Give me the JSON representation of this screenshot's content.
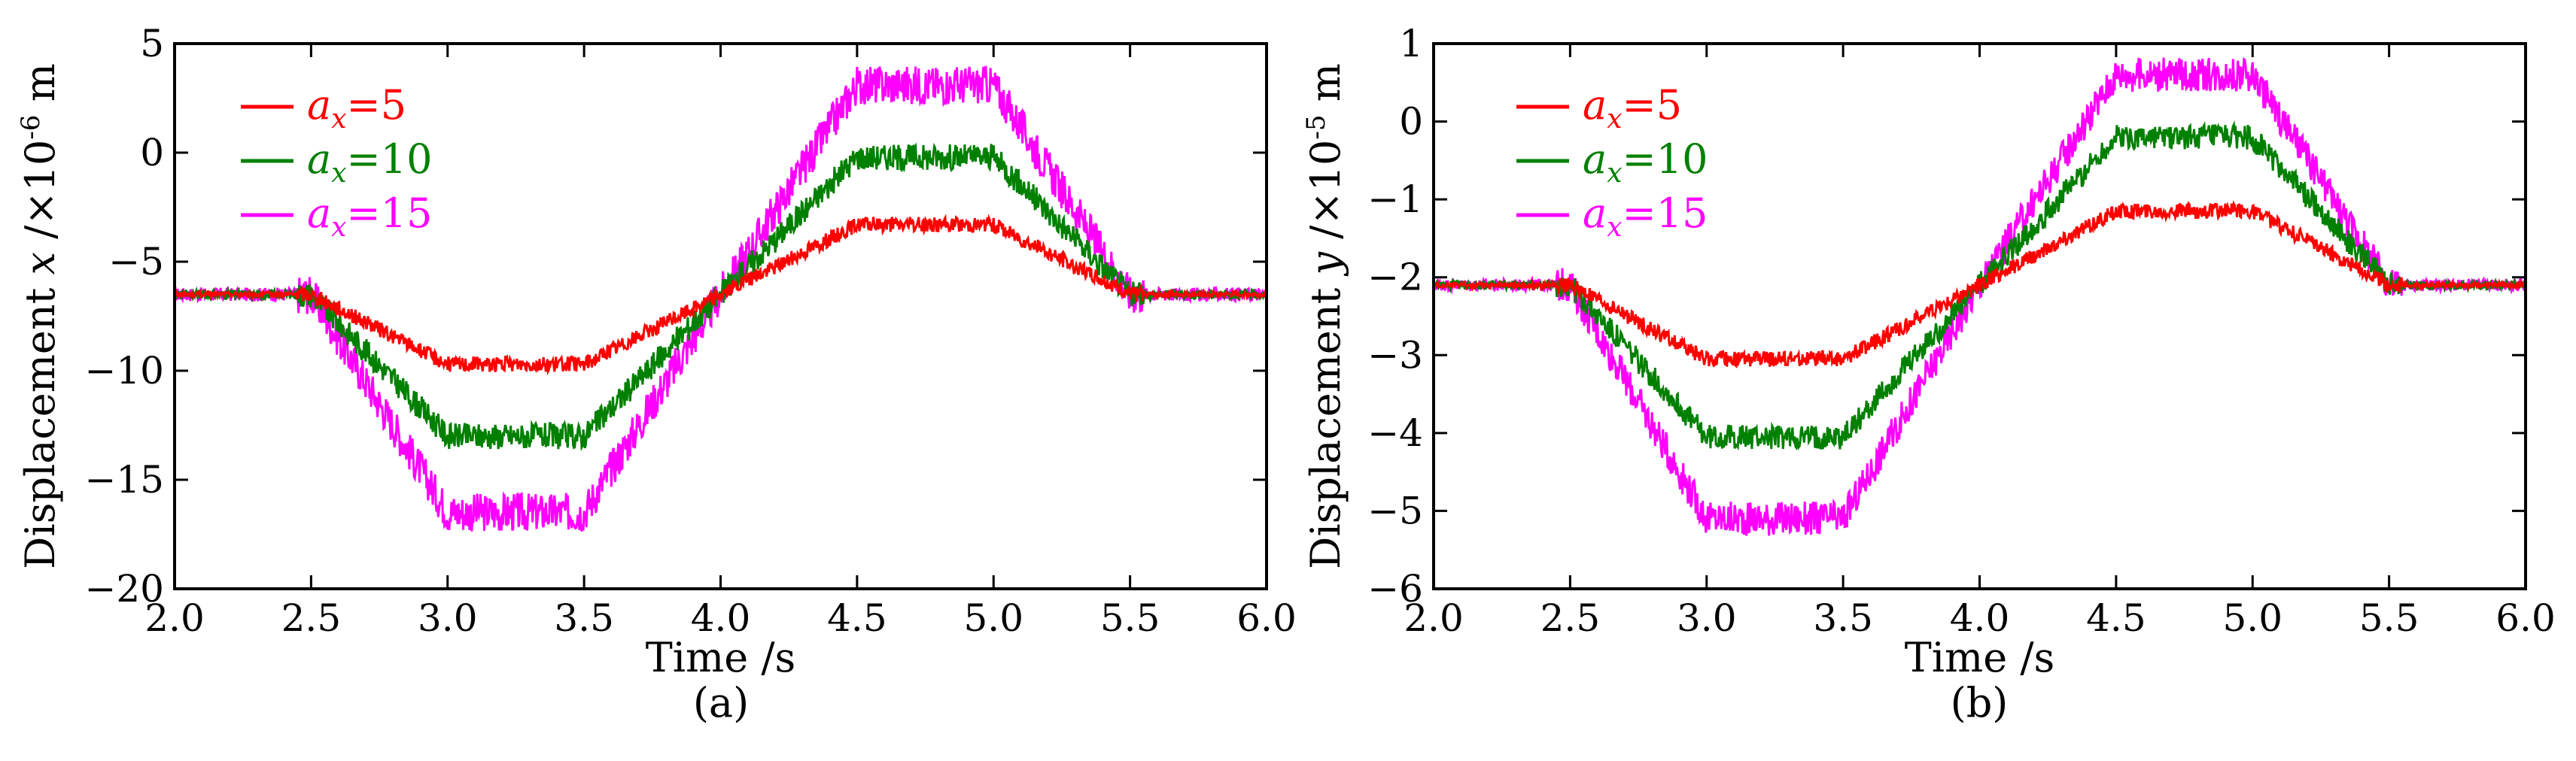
{
  "chart_data": [
    {
      "type": "line",
      "panel_label": "(a)",
      "xlabel": "Time /s",
      "ylabel_prefix": "Displacement ",
      "ylabel_var": "x",
      "ylabel_unit_pre": " /×10",
      "ylabel_exp": "-6",
      "ylabel_unit_post": " m",
      "xlim": [
        2.0,
        6.0
      ],
      "ylim": [
        -20,
        5
      ],
      "xticks": [
        2.0,
        2.5,
        3.0,
        3.5,
        4.0,
        4.5,
        5.0,
        5.5,
        6.0
      ],
      "xtick_labels": [
        "2.0",
        "2.5",
        "3.0",
        "3.5",
        "4.0",
        "4.5",
        "5.0",
        "5.5",
        "6.0"
      ],
      "yticks": [
        5,
        0,
        -5,
        -10,
        -15,
        -20
      ],
      "ytick_labels": [
        "5",
        "0",
        "−5",
        "−10",
        "−15",
        "−20"
      ],
      "legend_position": "top-left",
      "series": [
        {
          "name": "a_x=5",
          "legend_var": "a",
          "legend_sub": "x",
          "legend_val": "=5",
          "color": "#ff0000",
          "x": [
            2.0,
            2.5,
            3.0,
            3.5,
            4.0,
            4.5,
            5.0,
            5.5,
            6.0
          ],
          "y": [
            -6.5,
            -6.5,
            -9.7,
            -9.7,
            -6.5,
            -3.3,
            -3.3,
            -6.5,
            -6.5
          ],
          "noise": 0.35
        },
        {
          "name": "a_x=10",
          "legend_var": "a",
          "legend_sub": "x",
          "legend_val": "=10",
          "color": "#008000",
          "x": [
            2.0,
            2.5,
            3.0,
            3.5,
            4.0,
            4.5,
            5.0,
            5.5,
            6.0
          ],
          "y": [
            -6.5,
            -6.5,
            -13.0,
            -13.0,
            -6.5,
            -0.2,
            -0.2,
            -6.5,
            -6.5
          ],
          "noise": 0.6
        },
        {
          "name": "a_x=15",
          "legend_var": "a",
          "legend_sub": "x",
          "legend_val": "=15",
          "color": "#ff00ff",
          "x": [
            2.0,
            2.5,
            3.0,
            3.5,
            4.0,
            4.5,
            5.0,
            5.5,
            6.0
          ],
          "y": [
            -6.5,
            -6.5,
            -16.5,
            -16.5,
            -6.5,
            3.1,
            3.1,
            -6.5,
            -6.5
          ],
          "noise": 0.9
        }
      ]
    },
    {
      "type": "line",
      "panel_label": "(b)",
      "xlabel": "Time /s",
      "ylabel_prefix": "Displacement ",
      "ylabel_var": "y",
      "ylabel_unit_pre": " /×10",
      "ylabel_exp": "-5",
      "ylabel_unit_post": " m",
      "xlim": [
        2.0,
        6.0
      ],
      "ylim": [
        -6,
        1
      ],
      "xticks": [
        2.0,
        2.5,
        3.0,
        3.5,
        4.0,
        4.5,
        5.0,
        5.5,
        6.0
      ],
      "xtick_labels": [
        "2.0",
        "2.5",
        "3.0",
        "3.5",
        "4.0",
        "4.5",
        "5.0",
        "5.5",
        "6.0"
      ],
      "yticks": [
        1,
        0,
        -1,
        -2,
        -3,
        -4,
        -5,
        -6
      ],
      "ytick_labels": [
        "1",
        "0",
        "−1",
        "−2",
        "−3",
        "−4",
        "−5",
        "−6"
      ],
      "legend_position": "top-left",
      "series": [
        {
          "name": "a_x=5",
          "legend_var": "a",
          "legend_sub": "x",
          "legend_val": "=5",
          "color": "#ff0000",
          "x": [
            2.0,
            2.5,
            3.0,
            3.5,
            4.0,
            4.5,
            5.0,
            5.5,
            6.0
          ],
          "y": [
            -2.1,
            -2.1,
            -3.05,
            -3.05,
            -2.1,
            -1.15,
            -1.15,
            -2.1,
            -2.1
          ],
          "noise": 0.1
        },
        {
          "name": "a_x=10",
          "legend_var": "a",
          "legend_sub": "x",
          "legend_val": "=10",
          "color": "#008000",
          "x": [
            2.0,
            2.5,
            3.0,
            3.5,
            4.0,
            4.5,
            5.0,
            5.5,
            6.0
          ],
          "y": [
            -2.1,
            -2.1,
            -4.05,
            -4.05,
            -2.1,
            -0.2,
            -0.2,
            -2.1,
            -2.1
          ],
          "noise": 0.16
        },
        {
          "name": "a_x=15",
          "legend_var": "a",
          "legend_sub": "x",
          "legend_val": "=15",
          "color": "#ff00ff",
          "x": [
            2.0,
            2.5,
            3.0,
            3.5,
            4.0,
            4.5,
            5.0,
            5.5,
            6.0
          ],
          "y": [
            -2.1,
            -2.1,
            -5.1,
            -5.1,
            -2.1,
            0.6,
            0.6,
            -2.1,
            -2.1
          ],
          "noise": 0.22
        }
      ]
    }
  ]
}
